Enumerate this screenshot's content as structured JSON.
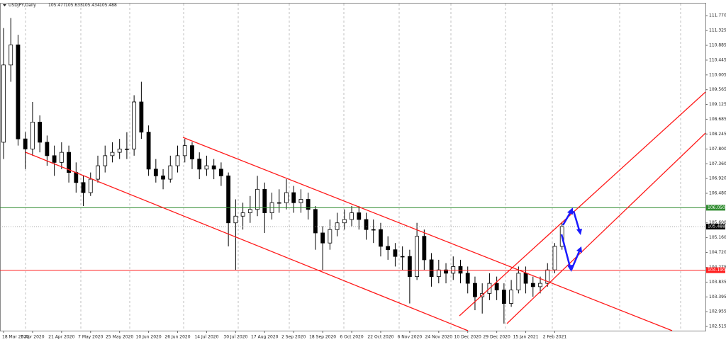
{
  "chart_data": {
    "type": "candlestick",
    "title": "USDJPY,Daily",
    "ohlc_header": [
      105.477,
      105.633,
      105.434,
      105.488
    ],
    "categories": [
      "18 Mar 2020",
      null,
      null,
      null,
      "3 Apr 2020",
      null,
      null,
      null,
      "21 Apr 2020",
      null,
      null,
      null,
      "7 May 2020",
      null,
      null,
      null,
      "25 May 2020",
      null,
      null,
      null,
      "10 Jun 2020",
      null,
      null,
      null,
      "26 Jun 2020",
      null,
      null,
      null,
      "14 Jul 2020",
      null,
      null,
      null,
      "30 Jul 2020",
      null,
      null,
      null,
      "17 Aug 2020",
      null,
      null,
      null,
      "2 Sep 2020",
      null,
      null,
      null,
      "18 Sep 2020",
      null,
      null,
      null,
      "6 Oct 2020",
      null,
      null,
      null,
      "22 Oct 2020",
      null,
      null,
      null,
      "6 Nov 2020",
      null,
      null,
      null,
      "24 Nov 2020",
      null,
      null,
      null,
      "10 Dec 2020",
      null,
      null,
      null,
      "29 Dec 2020",
      null,
      null,
      null,
      "15 Jan 2021",
      null,
      null,
      null,
      "2 Feb 2021",
      null
    ],
    "open": [
      108.0,
      110.3,
      110.9,
      108.1,
      107.8,
      108.6,
      108.0,
      107.6,
      107.4,
      107.7,
      107.1,
      106.8,
      106.5,
      106.9,
      107.3,
      107.6,
      107.7,
      107.8,
      107.8,
      109.2,
      108.3,
      107.2,
      107.0,
      106.9,
      107.3,
      107.6,
      107.9,
      107.5,
      107.2,
      107.3,
      107.2,
      107.0,
      105.6,
      105.8,
      105.9,
      106.0,
      106.6,
      105.9,
      106.2,
      106.2,
      106.5,
      106.2,
      106.3,
      106.0,
      105.3,
      105.0,
      105.4,
      105.6,
      105.7,
      105.9,
      105.7,
      105.4,
      105.4,
      104.9,
      104.8,
      104.6,
      104.6,
      104.0,
      105.2,
      104.5,
      104.0,
      104.2,
      104.1,
      104.3,
      104.1,
      103.8,
      103.4,
      103.5,
      103.8,
      103.6,
      103.2,
      103.6,
      104.1,
      103.8,
      103.7,
      103.8,
      104.2,
      104.9
    ],
    "high": [
      111.4,
      111.7,
      111.2,
      108.3,
      109.2,
      108.8,
      108.2,
      107.9,
      108.0,
      107.9,
      107.4,
      107.0,
      107.1,
      107.6,
      107.9,
      108.0,
      108.1,
      108.3,
      109.4,
      109.8,
      108.5,
      107.5,
      107.2,
      107.6,
      107.9,
      108.1,
      108.0,
      107.7,
      107.6,
      107.5,
      107.4,
      107.1,
      106.3,
      106.2,
      106.4,
      107.0,
      106.8,
      106.5,
      106.6,
      106.9,
      106.7,
      106.6,
      106.5,
      106.1,
      105.5,
      105.7,
      105.9,
      106.0,
      106.1,
      106.1,
      105.9,
      105.7,
      105.6,
      105.2,
      105.0,
      104.9,
      104.8,
      105.6,
      105.4,
      104.7,
      104.5,
      104.4,
      104.6,
      104.5,
      104.3,
      104.0,
      103.8,
      104.1,
      104.0,
      103.8,
      103.9,
      104.3,
      104.3,
      104.0,
      104.0,
      104.4,
      105.0,
      105.63
    ],
    "low": [
      107.5,
      109.8,
      107.9,
      107.2,
      107.6,
      107.7,
      107.3,
      107.0,
      107.2,
      106.8,
      106.5,
      106.1,
      106.4,
      106.8,
      107.1,
      107.4,
      107.5,
      107.5,
      107.6,
      108.1,
      107.0,
      106.8,
      106.6,
      106.8,
      107.1,
      107.4,
      107.2,
      106.9,
      107.0,
      106.9,
      106.7,
      104.9,
      104.2,
      105.4,
      105.6,
      105.8,
      105.3,
      105.7,
      105.9,
      106.0,
      105.9,
      105.9,
      105.7,
      104.8,
      104.2,
      104.8,
      105.2,
      105.4,
      105.5,
      105.4,
      105.1,
      105.0,
      104.6,
      104.5,
      104.3,
      104.2,
      103.2,
      103.9,
      104.2,
      103.7,
      103.8,
      103.8,
      103.9,
      103.8,
      103.5,
      103.0,
      102.9,
      103.3,
      103.3,
      102.6,
      103.1,
      103.5,
      103.5,
      103.4,
      103.5,
      103.7,
      104.1,
      104.8
    ],
    "close": [
      110.3,
      110.9,
      108.1,
      107.8,
      108.6,
      108.0,
      107.6,
      107.4,
      107.7,
      107.1,
      106.8,
      106.5,
      106.9,
      107.3,
      107.6,
      107.7,
      107.8,
      107.8,
      109.2,
      108.3,
      107.2,
      107.0,
      106.9,
      107.3,
      107.6,
      107.9,
      107.5,
      107.2,
      107.3,
      107.2,
      107.0,
      105.6,
      105.8,
      105.9,
      106.0,
      106.6,
      105.9,
      106.2,
      106.2,
      106.5,
      106.2,
      106.3,
      106.0,
      105.3,
      105.0,
      105.4,
      105.6,
      105.7,
      105.9,
      105.7,
      105.4,
      105.4,
      104.9,
      104.8,
      104.6,
      104.6,
      104.0,
      105.2,
      104.5,
      104.0,
      104.2,
      104.1,
      104.3,
      104.1,
      103.8,
      103.4,
      103.5,
      103.8,
      103.6,
      103.2,
      103.6,
      104.1,
      103.8,
      103.7,
      103.8,
      104.2,
      104.9,
      105.49
    ],
    "ylim": [
      102.39,
      112.13
    ],
    "yticks": [
      {
        "value": 111.77,
        "label": "111.770"
      },
      111.325,
      110.885,
      110.445,
      110.005,
      109.565,
      109.125,
      108.685,
      108.245,
      {
        "value": 107.8,
        "label": "107.800"
      },
      {
        "value": 107.36,
        "label": "107.360"
      },
      {
        "value": 106.92,
        "label": "106.920"
      },
      {
        "value": 106.48,
        "label": "106.480"
      },
      {
        "value": 105.6,
        "label": "105.600"
      },
      {
        "value": 105.16,
        "label": "105.160"
      },
      {
        "value": 104.72,
        "label": "104.720"
      },
      104.275,
      103.835,
      103.395,
      102.955,
      102.515
    ],
    "levels": [
      {
        "value": 106.05,
        "label": "106.050",
        "color": "#2e8b2e"
      },
      {
        "value": 104.19,
        "label": "104.190",
        "color": "#ff2020"
      },
      {
        "value": 105.488,
        "label": "105.488",
        "color": "#000000"
      }
    ]
  }
}
